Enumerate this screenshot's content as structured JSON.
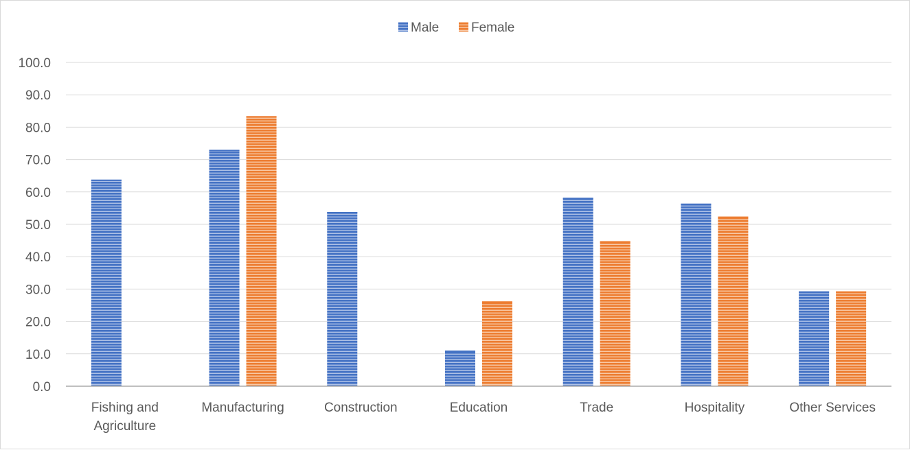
{
  "chart_data": {
    "type": "bar",
    "categories": [
      "Fishing and Agriculture",
      "Manufacturing",
      "Construction",
      "Education",
      "Trade",
      "Hospitality",
      "Other Services"
    ],
    "category_lines": [
      [
        "Fishing and",
        "Agriculture"
      ],
      [
        "Manufacturing"
      ],
      [
        "Construction"
      ],
      [
        "Education"
      ],
      [
        "Trade"
      ],
      [
        "Hospitality"
      ],
      [
        "Other Services"
      ]
    ],
    "series": [
      {
        "name": "Male",
        "color": "#4472c4",
        "values": [
          63.8,
          73.0,
          53.8,
          11.0,
          58.2,
          56.4,
          29.3
        ]
      },
      {
        "name": "Female",
        "color": "#ed7d31",
        "values": [
          null,
          83.4,
          null,
          26.2,
          44.8,
          52.4,
          29.3
        ]
      }
    ],
    "yticks": [
      "0.0",
      "10.0",
      "20.0",
      "30.0",
      "40.0",
      "50.0",
      "60.0",
      "70.0",
      "80.0",
      "90.0",
      "100.0"
    ],
    "ylim": [
      0,
      100
    ],
    "grid": true,
    "legend_position": "top-center",
    "bar_pattern": "horizontal-stripes",
    "gridline_color": "#d9d9d9",
    "axis_color": "#bfbfbf"
  }
}
